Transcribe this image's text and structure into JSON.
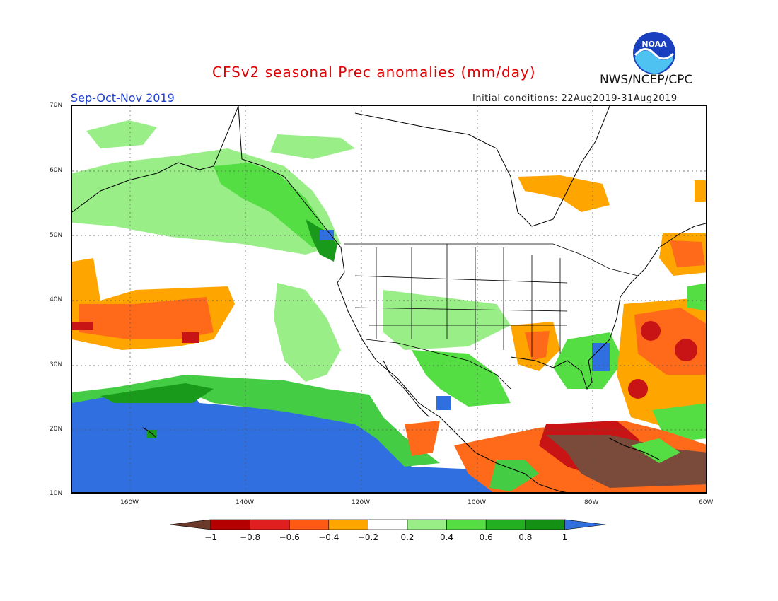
{
  "title": "CFSv2 seasonal Prec anomalies (mm/day)",
  "season": "Sep-Oct-Nov 2019",
  "initial_conditions": "Initial conditions: 22Aug2019-31Aug2019",
  "agency": "NWS/NCEP/CPC",
  "logo_text": "NOAA",
  "lat_labels": [
    "70N",
    "60N",
    "50N",
    "40N",
    "30N",
    "20N",
    "10N"
  ],
  "lon_labels": [
    "160W",
    "140W",
    "120W",
    "100W",
    "80W",
    "60W"
  ],
  "colorbar": {
    "labels": [
      "-1",
      "-0.8",
      "-0.6",
      "-0.4",
      "-0.2",
      "0.2",
      "0.4",
      "0.6",
      "0.8",
      "1"
    ],
    "colors": [
      "#6b3a2a",
      "#b40000",
      "#e02020",
      "#ff5a14",
      "#ffa500",
      "#ffffff",
      "#99ee88",
      "#55dd44",
      "#22b022",
      "#149014",
      "#2f6fdf"
    ]
  },
  "map_colors": {
    "strong_dry": "#7a4a3a",
    "dry": "#c81414",
    "moderate_dry": "#ff6a1a",
    "slight_dry": "#ffa500",
    "slight_wet": "#99ee88",
    "wet": "#44cc44",
    "more_wet": "#1a9a1a",
    "strong_wet": "#2f6fdf"
  }
}
